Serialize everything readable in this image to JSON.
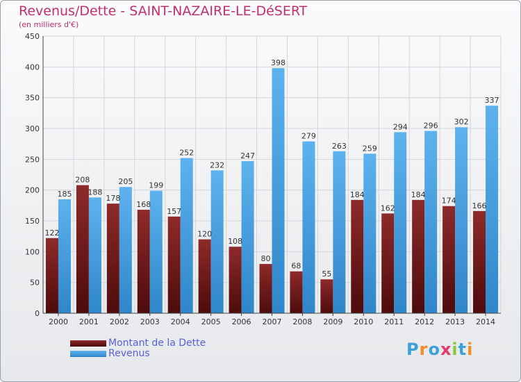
{
  "chart_data": {
    "type": "bar",
    "title": "Revenus/Dette - SAINT-NAZAIRE-LE-DéSERT",
    "subtitle": "(en milliers d'€)",
    "xlabel": "",
    "ylabel": "",
    "ylim": [
      0,
      450
    ],
    "yticks": [
      0,
      50,
      100,
      150,
      200,
      250,
      300,
      350,
      400,
      450
    ],
    "grid": true,
    "legend_position": "bottom-left",
    "categories": [
      "2000",
      "2001",
      "2002",
      "2003",
      "2004",
      "2005",
      "2006",
      "2007",
      "2008",
      "2009",
      "2010",
      "2011",
      "2012",
      "2013",
      "2014"
    ],
    "series": [
      {
        "name": "Montant de la Dette",
        "color": "#7a1a1a",
        "values": [
          122,
          208,
          178,
          168,
          157,
          120,
          108,
          80,
          68,
          55,
          184,
          162,
          184,
          174,
          166
        ],
        "labels": [
          "122",
          "208",
          "178",
          "168",
          "157",
          "120",
          "108",
          "80",
          "68",
          "55",
          "184",
          "162",
          "184",
          "174",
          "166"
        ]
      },
      {
        "name": "Revenus",
        "color": "#4aa3e6",
        "values": [
          185,
          188,
          205,
          199,
          252,
          232,
          247,
          398,
          279,
          263,
          259,
          294,
          296,
          302,
          337
        ],
        "labels": [
          "185",
          "188",
          "205",
          "199",
          "252",
          "232",
          "247",
          "398",
          "279",
          "263",
          "259",
          "294",
          "296",
          "302",
          "337"
        ]
      }
    ]
  },
  "brand": {
    "letters": [
      "P",
      "r",
      "o",
      "x",
      "i",
      "t",
      "i"
    ],
    "colors": [
      "#3ba1d8",
      "#f28c28",
      "#3ba1d8",
      "#e63a6e",
      "#8cc63f",
      "#3ba1d8",
      "#f28c28"
    ]
  }
}
